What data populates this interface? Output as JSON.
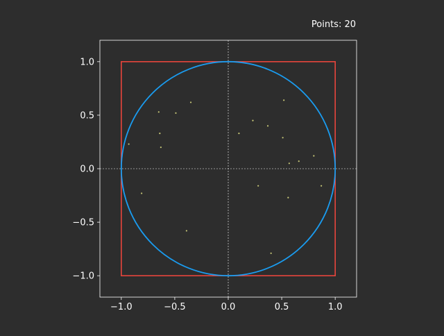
{
  "figure": {
    "background": "#2d2d2d",
    "text_color": "#ffffff"
  },
  "title": "Points: 20",
  "chart_data": {
    "type": "scatter",
    "title": "Points: 20",
    "xlabel": "",
    "ylabel": "",
    "xlim": [
      -1.2,
      1.2
    ],
    "ylim": [
      -1.2,
      1.2
    ],
    "grid": false,
    "aspect": "equal",
    "xticks": [
      -1.0,
      -0.5,
      0.0,
      0.5,
      1.0
    ],
    "yticks": [
      -1.0,
      -0.5,
      0.0,
      0.5,
      1.0
    ],
    "xtick_labels": [
      "−1.0",
      "−0.5",
      "0.0",
      "0.5",
      "1.0"
    ],
    "ytick_labels": [
      "−1.0",
      "−0.5",
      "0.0",
      "0.5",
      "1.0"
    ],
    "reference_lines": {
      "x0": {
        "value": 0.0,
        "style": "dashed",
        "color": "#ffffff"
      },
      "y0": {
        "value": 0.0,
        "style": "dashed",
        "color": "#ffffff"
      }
    },
    "square": {
      "xmin": -1.0,
      "xmax": 1.0,
      "ymin": -1.0,
      "ymax": 1.0,
      "color": "#e8453c"
    },
    "circle": {
      "cx": 0.0,
      "cy": 0.0,
      "r": 1.0,
      "color": "#1a9cf0"
    },
    "points": {
      "color": "#c8c878",
      "x": [
        -0.65,
        -0.49,
        -0.35,
        -0.93,
        -0.64,
        -0.63,
        -0.81,
        -0.39,
        0.1,
        0.23,
        0.37,
        0.52,
        0.51,
        0.57,
        0.66,
        0.8,
        0.87,
        0.28,
        0.56,
        0.4
      ],
      "y": [
        0.53,
        0.52,
        0.62,
        0.23,
        0.33,
        0.2,
        -0.23,
        -0.58,
        0.33,
        0.45,
        0.4,
        0.64,
        0.29,
        0.05,
        0.07,
        0.12,
        -0.16,
        -0.16,
        -0.27,
        -0.79
      ]
    }
  }
}
